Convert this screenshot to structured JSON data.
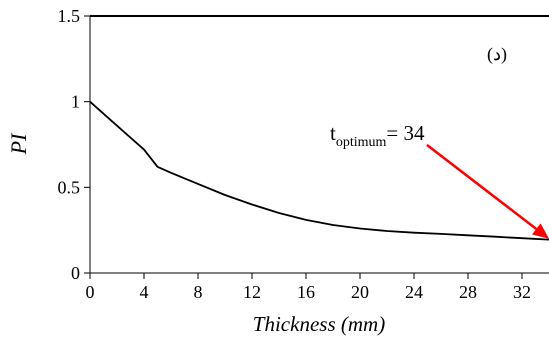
{
  "chart_data": {
    "type": "line",
    "xlabel": "Thickness (mm)",
    "ylabel": "PI",
    "xlim": [
      0,
      34
    ],
    "ylim": [
      0,
      1.5
    ],
    "x_ticks": [
      "0",
      "4",
      "8",
      "12",
      "16",
      "20",
      "24",
      "28",
      "32"
    ],
    "y_ticks": [
      "0",
      "0.5",
      "1",
      "1.5"
    ],
    "grid": false,
    "legend": "none",
    "series": [
      {
        "color": "#000000",
        "x": [
          0,
          2,
          4,
          5,
          6,
          8,
          10,
          12,
          14,
          16,
          18,
          20,
          22,
          24,
          26,
          28,
          30,
          32,
          34
        ],
        "y": [
          1.0,
          0.86,
          0.72,
          0.62,
          0.585,
          0.52,
          0.455,
          0.4,
          0.35,
          0.31,
          0.28,
          0.26,
          0.245,
          0.235,
          0.228,
          0.22,
          0.212,
          0.203,
          0.195
        ]
      }
    ],
    "annotations": {
      "panel_label": "(د)",
      "optimum_prefix": "t",
      "optimum_subscript": "optimum",
      "optimum_value": "= 34",
      "arrow_color": "#ff0000",
      "arrow_target": [
        34,
        0.2
      ]
    }
  }
}
